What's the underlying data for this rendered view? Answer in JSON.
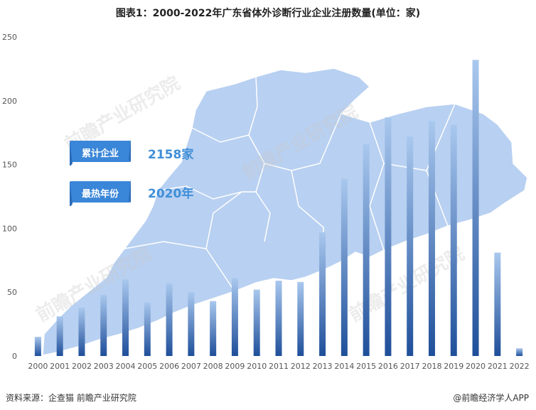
{
  "title": "图表1：2000-2022年广东省体外诊断行业企业注册数量(单位：家)",
  "stats": {
    "cumulative_label": "累计企业",
    "cumulative_value": "2158家",
    "peak_label": "最热年份",
    "peak_value": "2020年"
  },
  "footer": {
    "source": "资料来源：企查猫 前瞻产业研究院",
    "brand": "@前瞻经济学人APP"
  },
  "watermark": "前瞻产业研究院",
  "colors": {
    "bar_top": "#a9c8ee",
    "bar_bottom": "#1f4f9a",
    "map": "#b7cff0",
    "banner": "#3a86d8",
    "stat_text": "#3f8fd8"
  },
  "chart_data": {
    "type": "bar",
    "title": "图表1：2000-2022年广东省体外诊断行业企业注册数量(单位：家)",
    "xlabel": "",
    "ylabel": "",
    "categories": [
      "2000",
      "2001",
      "2002",
      "2003",
      "2004",
      "2005",
      "2006",
      "2007",
      "2008",
      "2009",
      "2010",
      "2011",
      "2012",
      "2013",
      "2014",
      "2015",
      "2016",
      "2017",
      "2018",
      "2019",
      "2020",
      "2021",
      "2022"
    ],
    "values": [
      15,
      31,
      38,
      48,
      60,
      42,
      57,
      50,
      43,
      61,
      52,
      59,
      58,
      97,
      139,
      166,
      187,
      172,
      184,
      181,
      232,
      81,
      6
    ],
    "ylim": [
      0,
      250
    ],
    "yticks": [
      0,
      50,
      100,
      150,
      200,
      250
    ],
    "grid": false,
    "legend": "none"
  }
}
